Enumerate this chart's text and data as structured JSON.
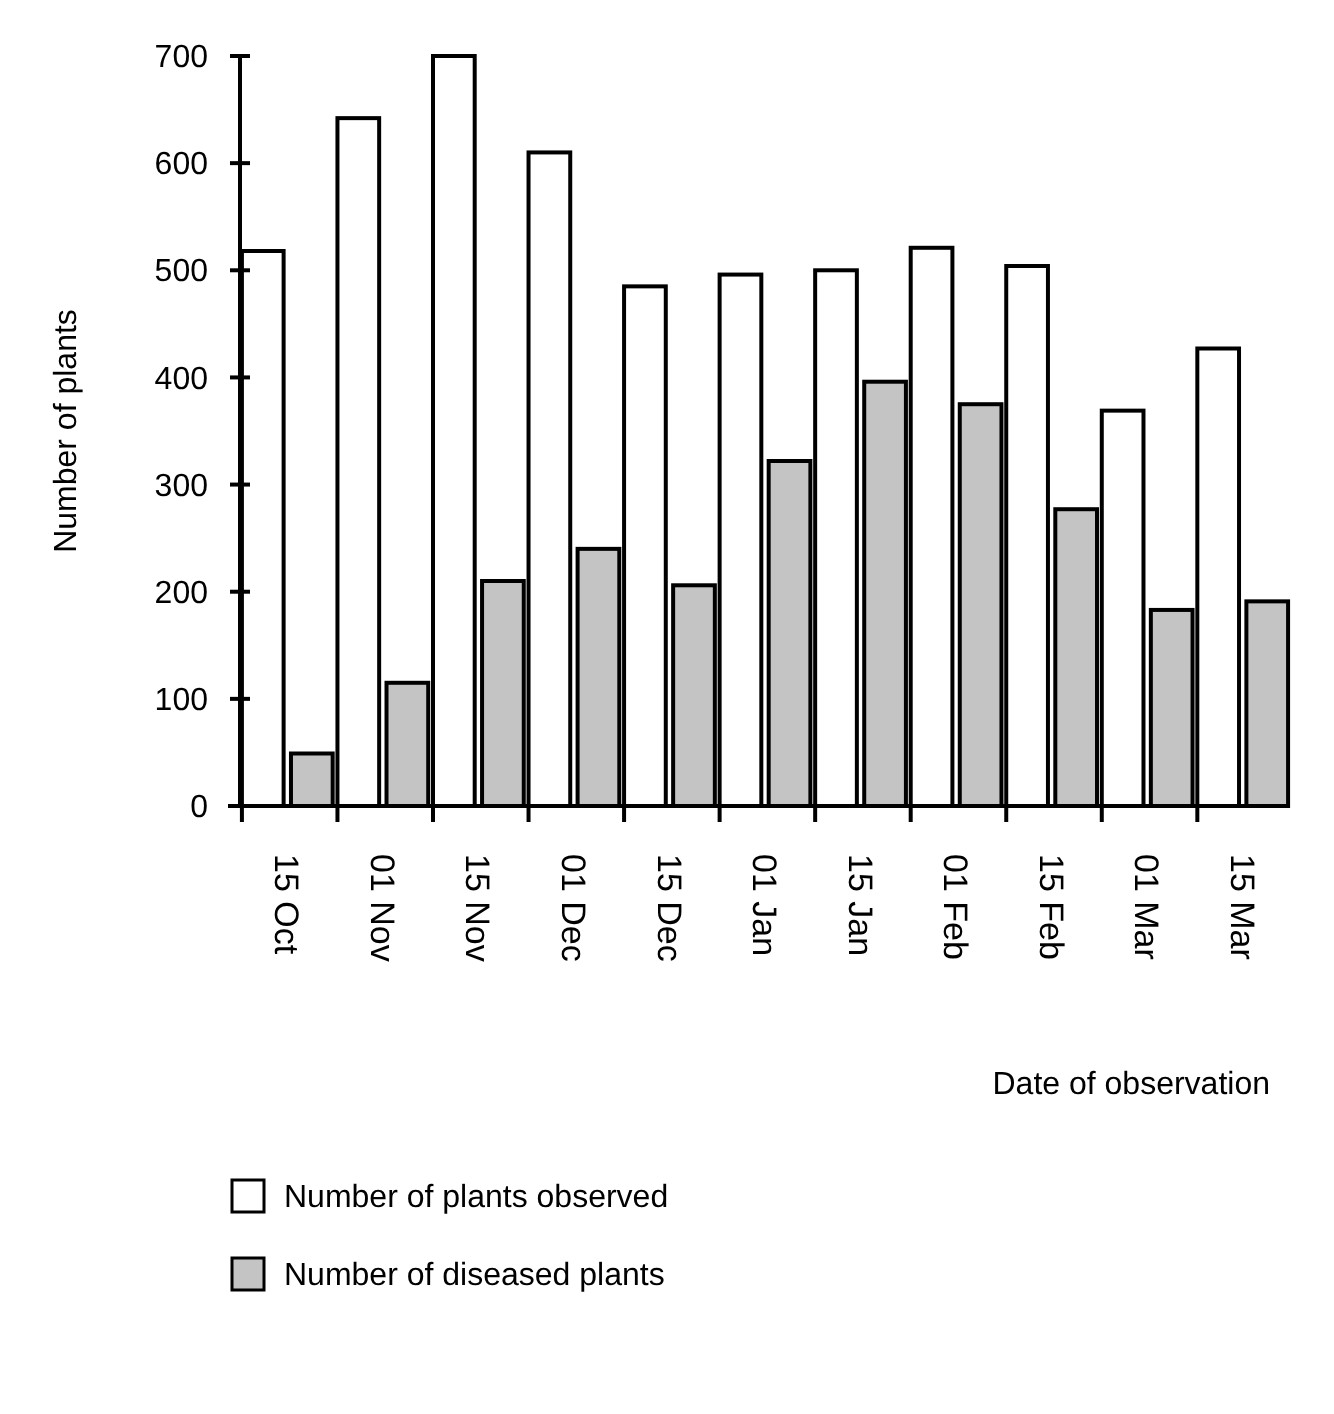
{
  "chart_data": {
    "type": "bar",
    "xlabel": "Date of observation",
    "ylabel": "Number of plants",
    "categories": [
      "15 Oct",
      "01 Nov",
      "15 Nov",
      "01 Dec",
      "15 Dec",
      "01 Jan",
      "15 Jan",
      "01 Feb",
      "15 Feb",
      "01 Mar",
      "15 Mar"
    ],
    "series": [
      {
        "name": "Number of plants observed",
        "color": "#ffffff",
        "values": [
          518,
          642,
          700,
          610,
          485,
          496,
          500,
          521,
          504,
          369,
          427
        ]
      },
      {
        "name": "Number of diseased plants",
        "color": "#c4c4c4",
        "values": [
          49,
          115,
          210,
          240,
          206,
          322,
          396,
          375,
          277,
          183,
          191
        ]
      }
    ],
    "ylim": [
      0,
      700
    ],
    "yticks": [
      0,
      100,
      200,
      300,
      400,
      500,
      600,
      700
    ],
    "grid": false,
    "legend": "bottom left"
  }
}
